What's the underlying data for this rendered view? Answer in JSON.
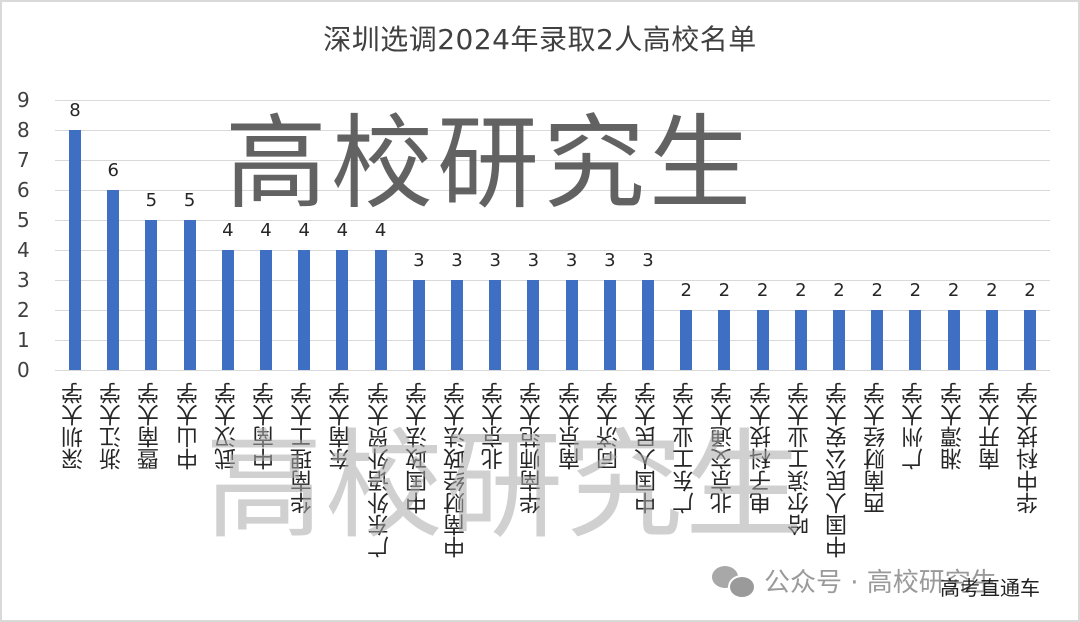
{
  "chart_data": {
    "type": "bar",
    "title": "深圳选调2024年录取2人高校名单",
    "xlabel": "",
    "ylabel": "",
    "ylim": [
      0,
      9
    ],
    "yticks": [
      "0",
      "1",
      "2",
      "3",
      "4",
      "5",
      "6",
      "7",
      "8",
      "9"
    ],
    "grid": true,
    "legend": "none",
    "bar_color": "#3f6fc3",
    "categories": [
      "深圳大学",
      "浙江大学",
      "暨南大学",
      "中山大学",
      "武汉大学",
      "中南大学",
      "华南理工大学",
      "东南大学",
      "广东外语外贸大学",
      "中国政法大学",
      "中南财经政法大学",
      "北京大学",
      "华南师范大学",
      "南京大学",
      "同济大学",
      "中国人民大学",
      "广东工业大学",
      "北京交通大学",
      "电子科技大学",
      "哈尔滨工业大学",
      "中国人民公安大学",
      "西南财经大学",
      "广州大学",
      "湘潭大学",
      "南开大学",
      "华中科技大学"
    ],
    "values": [
      8,
      6,
      5,
      5,
      4,
      4,
      4,
      4,
      4,
      3,
      3,
      3,
      3,
      3,
      3,
      3,
      2,
      2,
      2,
      2,
      2,
      2,
      2,
      2,
      2,
      2
    ],
    "data_labels": [
      "8",
      "6",
      "5",
      "5",
      "4",
      "4",
      "4",
      "4",
      "4",
      "3",
      "3",
      "3",
      "3",
      "3",
      "3",
      "3",
      "2",
      "2",
      "2",
      "2",
      "2",
      "2",
      "2",
      "2",
      "2",
      "2"
    ]
  },
  "watermarks": {
    "big": "高校研究生",
    "middle": "高校研究生",
    "footer": "公众号 · 高校研究生",
    "corner": "高考直通车"
  }
}
